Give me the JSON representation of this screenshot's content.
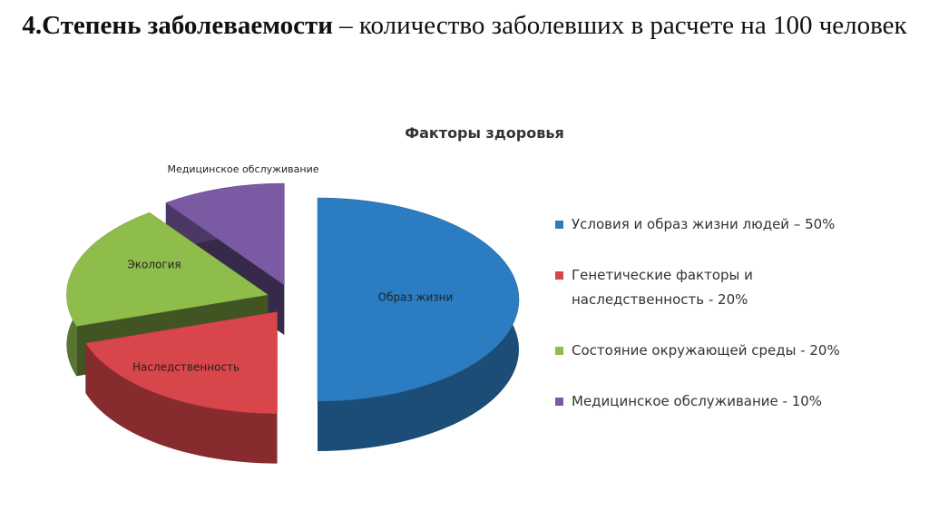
{
  "heading": {
    "bold": "4.Степень заболеваемости",
    "rest": "– количество заболевших  в расчете на 100 человек"
  },
  "chart_data": {
    "type": "pie",
    "title": "Факторы здоровья",
    "categories": [
      "Условия и образ жизни людей – 50%",
      "Генетические факторы и наследственность - 20%",
      "Состояние окружающей среды - 20%",
      "Медицинское обслуживание - 10%"
    ],
    "slice_labels": [
      "Образ жизни",
      "Наследственность",
      "Экология",
      "Медицинское обслуживание"
    ],
    "values": [
      50,
      20,
      20,
      10
    ],
    "colors": [
      "#2b7cc0",
      "#d8454a",
      "#8fbd4c",
      "#7a5aa3"
    ],
    "legend": "right",
    "exploded": true,
    "three_d": true
  }
}
